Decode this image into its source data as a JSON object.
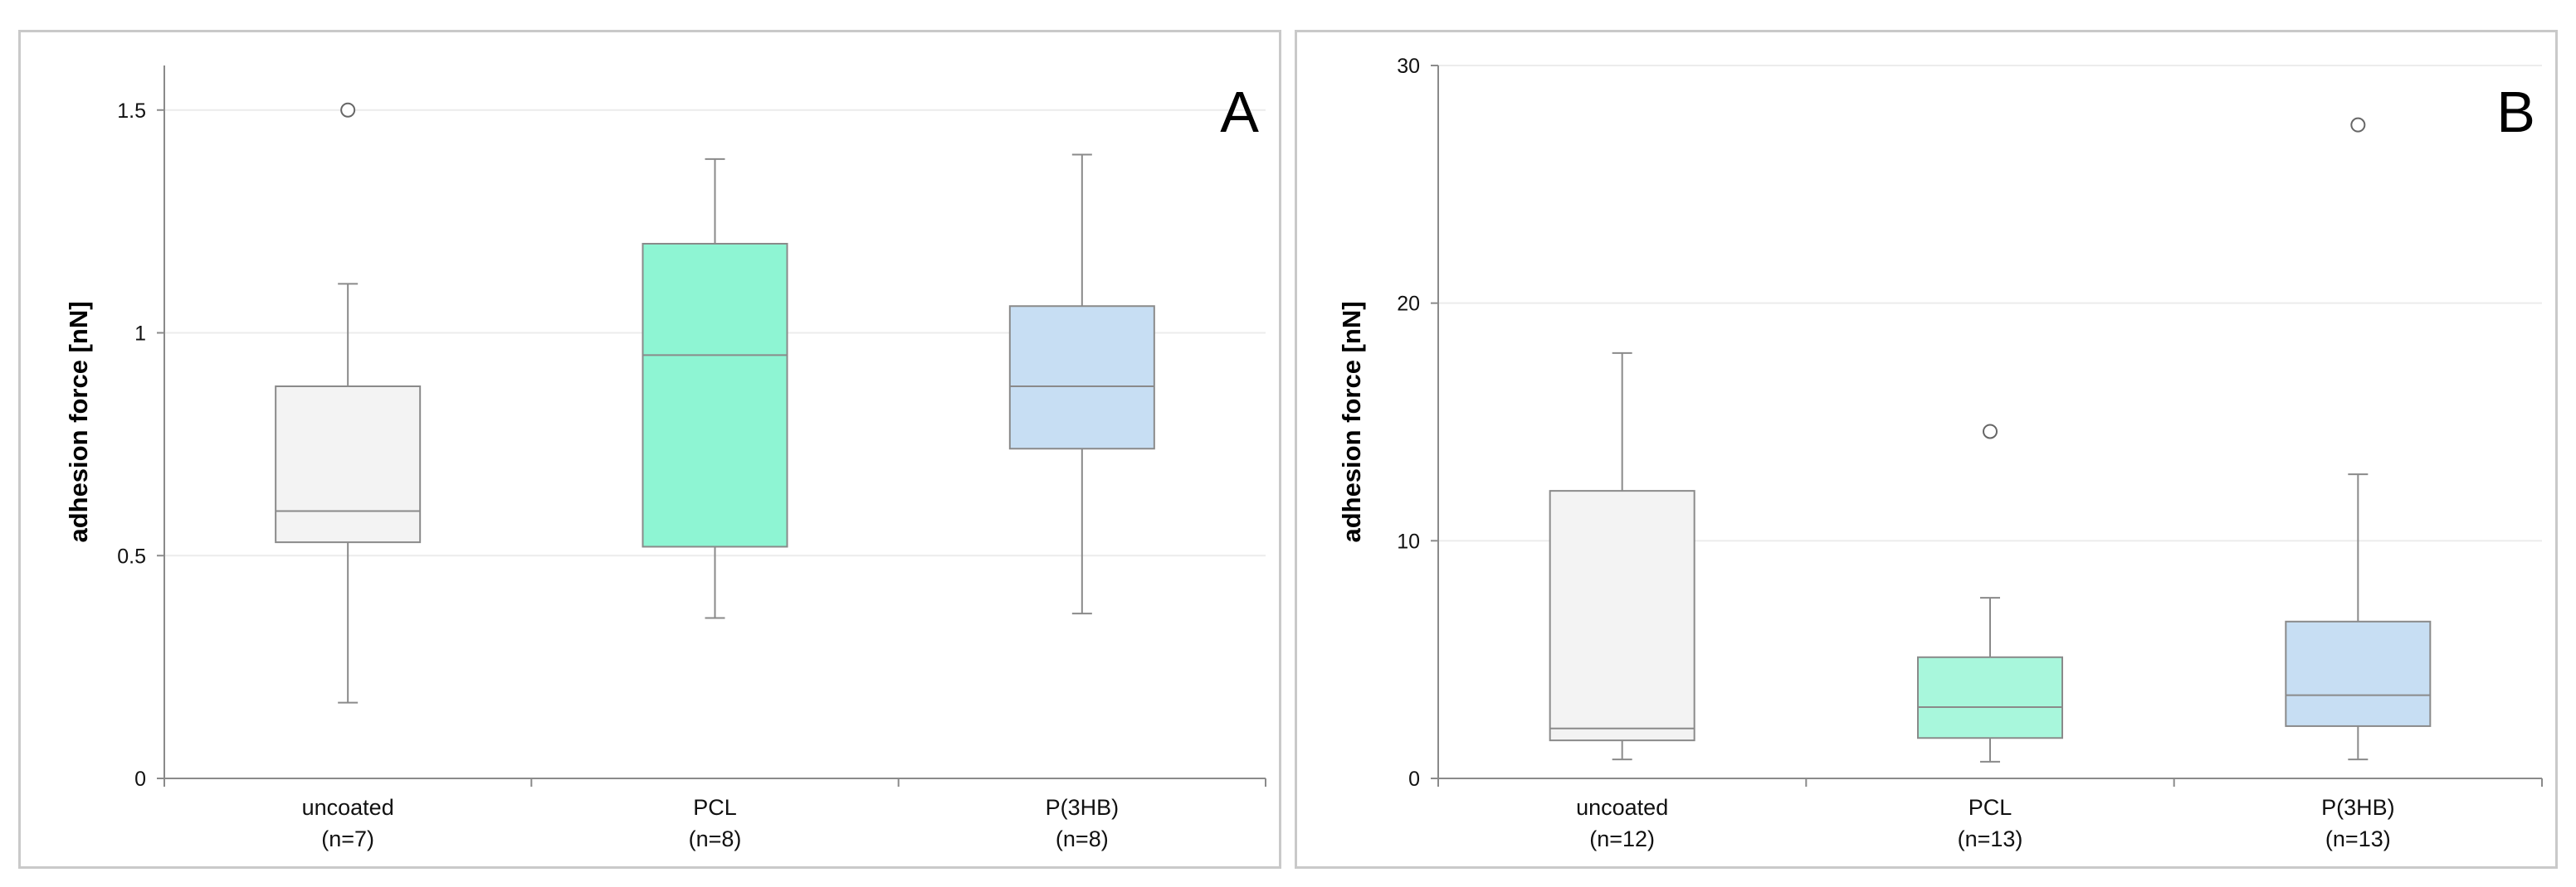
{
  "chart_data": [
    {
      "type": "box",
      "panel_label": "A",
      "ylabel": "adhesion force [nN]",
      "ylim": [
        0,
        1.6
      ],
      "yticks": [
        0,
        0.5,
        1,
        1.5
      ],
      "ytick_labels": [
        "0",
        "0.5",
        "1",
        "1.5"
      ],
      "grid": true,
      "categories": [
        {
          "label": "uncoated",
          "n_label": "(n=7)",
          "color": "#f3f3f3",
          "min": 0.17,
          "q1": 0.53,
          "median": 0.6,
          "q3": 0.88,
          "max": 1.11,
          "outliers": [
            1.5
          ]
        },
        {
          "label": "PCL",
          "n_label": "(n=8)",
          "color": "#8ef5d3",
          "min": 0.36,
          "q1": 0.52,
          "median": 0.95,
          "q3": 1.2,
          "max": 1.39,
          "outliers": []
        },
        {
          "label": "P(3HB)",
          "n_label": "(n=8)",
          "color": "#c7def3",
          "min": 0.37,
          "q1": 0.74,
          "median": 0.88,
          "q3": 1.06,
          "max": 1.4,
          "outliers": []
        }
      ]
    },
    {
      "type": "box",
      "panel_label": "B",
      "ylabel": "adhesion force [nN]",
      "ylim": [
        0,
        30
      ],
      "yticks": [
        0,
        10,
        20,
        30
      ],
      "ytick_labels": [
        "0",
        "10",
        "20",
        "30"
      ],
      "grid": true,
      "categories": [
        {
          "label": "uncoated",
          "n_label": "(n=12)",
          "color": "#f3f3f3",
          "min": 0.8,
          "q1": 1.6,
          "median": 2.1,
          "q3": 12.1,
          "max": 17.9,
          "outliers": []
        },
        {
          "label": "PCL",
          "n_label": "(n=13)",
          "color": "#a8f7dc",
          "min": 0.7,
          "q1": 1.7,
          "median": 3.0,
          "q3": 5.1,
          "max": 7.6,
          "outliers": [
            14.6
          ]
        },
        {
          "label": "P(3HB)",
          "n_label": "(n=13)",
          "color": "#c7def3",
          "min": 0.8,
          "q1": 2.2,
          "median": 3.5,
          "q3": 6.6,
          "max": 12.8,
          "outliers": [
            27.5
          ]
        }
      ]
    }
  ]
}
